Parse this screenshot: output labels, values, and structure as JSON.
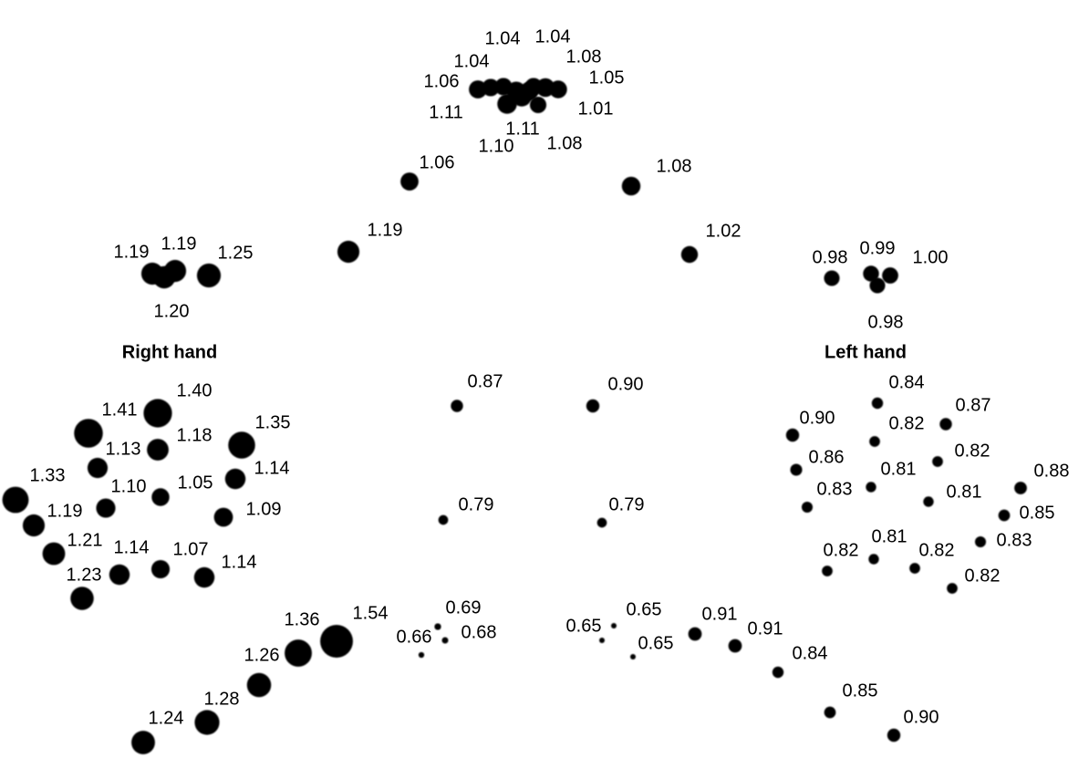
{
  "labels": {
    "right_hand": "Right hand",
    "left_hand": "Left hand"
  },
  "points": [
    "1.06",
    "1.04",
    "1.04",
    "1.04",
    "1.08",
    "1.05",
    "1.11",
    "1.01",
    "1.11",
    "1.10",
    "1.08",
    "1.06",
    "1.08",
    "1.19",
    "1.02",
    "1.19",
    "1.19",
    "1.25",
    "1.20",
    "0.98",
    "0.99",
    "1.00",
    "0.98",
    "0.87",
    "0.90",
    "0.79",
    "0.79",
    "1.40",
    "1.41",
    "1.18",
    "1.13",
    "1.35",
    "1.14",
    "1.05",
    "1.10",
    "1.09",
    "1.33",
    "1.19",
    "1.21",
    "1.14",
    "1.07",
    "1.14",
    "1.23",
    "0.84",
    "0.90",
    "0.87",
    "0.82",
    "0.86",
    "0.82",
    "0.81",
    "0.88",
    "0.83",
    "0.81",
    "0.85",
    "0.83",
    "0.82",
    "0.81",
    "0.82",
    "0.82",
    "1.54",
    "1.36",
    "1.26",
    "1.28",
    "1.24",
    "0.69",
    "0.68",
    "0.66",
    "0.65",
    "0.65",
    "0.65",
    "0.91",
    "0.91",
    "0.84",
    "0.85",
    "0.90"
  ]
}
